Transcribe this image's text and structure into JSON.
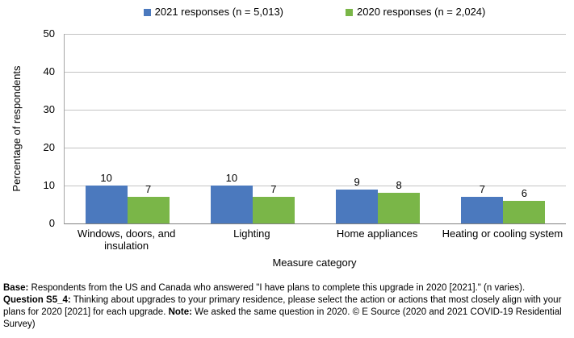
{
  "chart_data": {
    "type": "bar",
    "title": "",
    "categories": [
      "Windows, doors, and insulation",
      "Lighting",
      "Home appliances",
      "Heating or cooling system"
    ],
    "series": [
      {
        "key": "2021",
        "name": "2021 responses (n = 5,013)",
        "color": "#4B79BE",
        "values": [
          10,
          10,
          9,
          7
        ]
      },
      {
        "key": "2020",
        "name": "2020 responses (n = 2,024)",
        "color": "#7AB648",
        "values": [
          7,
          7,
          8,
          6
        ]
      }
    ],
    "xlabel": "Measure category",
    "ylabel": "Percentage of respondents",
    "ylim": [
      0,
      50
    ],
    "yticks": [
      0,
      10,
      20,
      30,
      40,
      50
    ],
    "grid": "horizontal",
    "legend_position": "top",
    "data_labels": true,
    "colors": {
      "gridline": "#c3c3c3",
      "axis_line": "#808080",
      "text": "#000000"
    }
  },
  "footnote": {
    "paragraphs": [
      [
        {
          "text": "Base:",
          "bold": true
        },
        {
          "text": " Respondents from the US and Canada who answered \"I have plans to complete this upgrade in 2020 [2021].\" (n varies).",
          "bold": false
        }
      ],
      [
        {
          "text": "Question S5_4:",
          "bold": true
        },
        {
          "text": " Thinking about upgrades to your primary residence, please select the action or actions that most closely align with your plans for 2020 [2021] for each upgrade. ",
          "bold": false
        },
        {
          "text": "Note:",
          "bold": true
        },
        {
          "text": " We asked the same question in 2020. © E Source (2020 and 2021 COVID-19 Residential Survey)",
          "bold": false
        }
      ]
    ]
  }
}
